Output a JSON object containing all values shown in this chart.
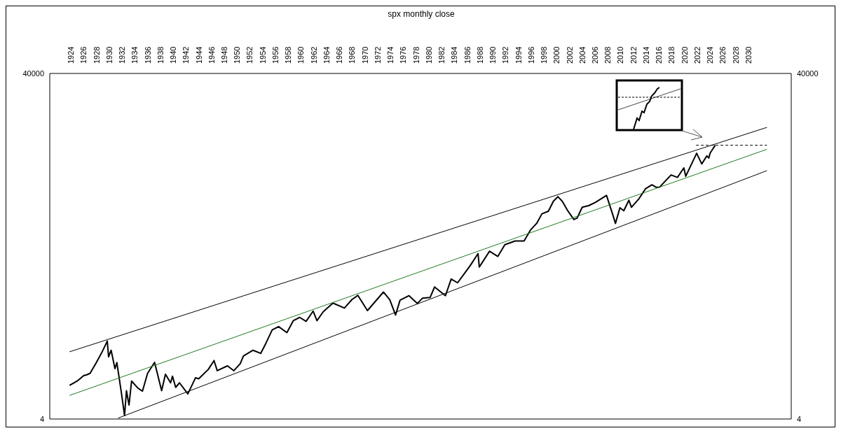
{
  "chart_data": {
    "type": "line",
    "title": "spx monthly close",
    "log": "y",
    "marker": "none",
    "xlim": [
      1920.7,
      2036.7
    ],
    "xticks": [
      1924,
      1926,
      1928,
      1930,
      1932,
      1934,
      1936,
      1938,
      1940,
      1942,
      1944,
      1946,
      1948,
      1950,
      1952,
      1954,
      1956,
      1958,
      1960,
      1962,
      1964,
      1966,
      1968,
      1970,
      1972,
      1974,
      1976,
      1978,
      1980,
      1982,
      1984,
      1986,
      1988,
      1990,
      1992,
      1994,
      1996,
      1998,
      2000,
      2002,
      2004,
      2006,
      2008,
      2010,
      2012,
      2014,
      2016,
      2018,
      2020,
      2022,
      2024,
      2026,
      2028,
      2030
    ],
    "ylim": [
      4,
      40000
    ],
    "yticks": [
      4,
      40000
    ],
    "y2lim": [
      4,
      40000
    ],
    "y2ticks": [
      4,
      40000
    ],
    "series": [
      {
        "color": "#000000",
        "line_style": "solid",
        "x": [
          1923.8,
          1925.0,
          1926.0,
          1926.5,
          1927.0,
          1927.9,
          1928.9,
          1929.7,
          1929.9,
          1930.3,
          1930.9,
          1931.2,
          1931.9,
          1932.4,
          1932.7,
          1933.1,
          1933.5,
          1934.5,
          1935.2,
          1936.0,
          1937.1,
          1938.2,
          1938.8,
          1939.6,
          1939.9,
          1940.4,
          1941.0,
          1942.3,
          1943.5,
          1944.0,
          1945.5,
          1946.4,
          1946.9,
          1948.5,
          1949.5,
          1950.5,
          1951.0,
          1952.5,
          1953.7,
          1954.5,
          1955.5,
          1956.5,
          1957.8,
          1958.8,
          1959.8,
          1960.8,
          1961.9,
          1962.5,
          1963.5,
          1965.0,
          1966.8,
          1968.0,
          1968.9,
          1970.4,
          1972.9,
          1973.9,
          1974.8,
          1975.5,
          1976.9,
          1978.2,
          1979.0,
          1980.2,
          1980.9,
          1982.6,
          1983.5,
          1984.5,
          1985.5,
          1986.5,
          1987.7,
          1987.9,
          1989.5,
          1990.8,
          1991.9,
          1993.5,
          1994.9,
          1995.9,
          1996.9,
          1997.7,
          1998.7,
          1999.5,
          2000.2,
          2000.9,
          2001.7,
          2002.7,
          2003.2,
          2004.0,
          2005.0,
          2006.0,
          2007.8,
          2008.7,
          2009.2,
          2009.9,
          2010.5,
          2011.3,
          2011.7,
          2012.9,
          2013.9,
          2014.9,
          2015.6,
          2016.1,
          2017.9,
          2018.9,
          2019.9,
          2020.2,
          2021.9,
          2022.7,
          2023.5,
          2023.8,
          2024.0,
          2024.8
        ],
        "values": [
          9.8,
          11,
          12.7,
          13,
          13.5,
          17.5,
          24,
          31.9,
          21,
          25,
          15.3,
          18,
          8.1,
          4.4,
          8.5,
          5.8,
          11,
          9.1,
          8.4,
          13.5,
          18.1,
          8.5,
          13.2,
          10.5,
          12.5,
          9.3,
          10.5,
          7.8,
          12,
          11.7,
          15,
          19,
          14.5,
          16.5,
          14.5,
          17.5,
          21.5,
          25,
          23,
          30,
          43,
          47,
          40,
          55,
          60,
          54,
          71,
          55,
          70,
          88,
          77,
          97,
          108,
          72,
          118,
          96,
          64,
          95,
          107,
          87,
          100,
          102,
          135,
          107,
          167,
          151,
          190,
          240,
          329,
          230,
          350,
          305,
          417,
          460,
          460,
          615,
          740,
          950,
          1017,
          1330,
          1498,
          1320,
          1040,
          815,
          848,
          1130,
          1180,
          1280,
          1549,
          968,
          735,
          1115,
          1030,
          1363,
          1130,
          1426,
          1848,
          2058,
          1920,
          1930,
          2674,
          2506,
          3230,
          2585,
          4766,
          3585,
          4450,
          4194,
          4770,
          5900
        ]
      },
      {
        "type": "line",
        "color": "#000000",
        "line_style": "solid",
        "x": [
          1923.8,
          2032.9
        ],
        "values": [
          24,
          9500
        ]
      },
      {
        "type": "line",
        "color": "#1f7a1f",
        "line_style": "solid",
        "x": [
          1923.8,
          2032.9
        ],
        "values": [
          7.5,
          5300
        ]
      },
      {
        "type": "line",
        "color": "#000000",
        "line_style": "solid",
        "x": [
          1931.4,
          2032.9
        ],
        "values": [
          4.1,
          3000
        ]
      },
      {
        "type": "line",
        "color": "#000000",
        "line_style": "dashed",
        "x": [
          2021.8,
          2032.9
        ],
        "values": [
          5900,
          5900
        ]
      }
    ]
  }
}
